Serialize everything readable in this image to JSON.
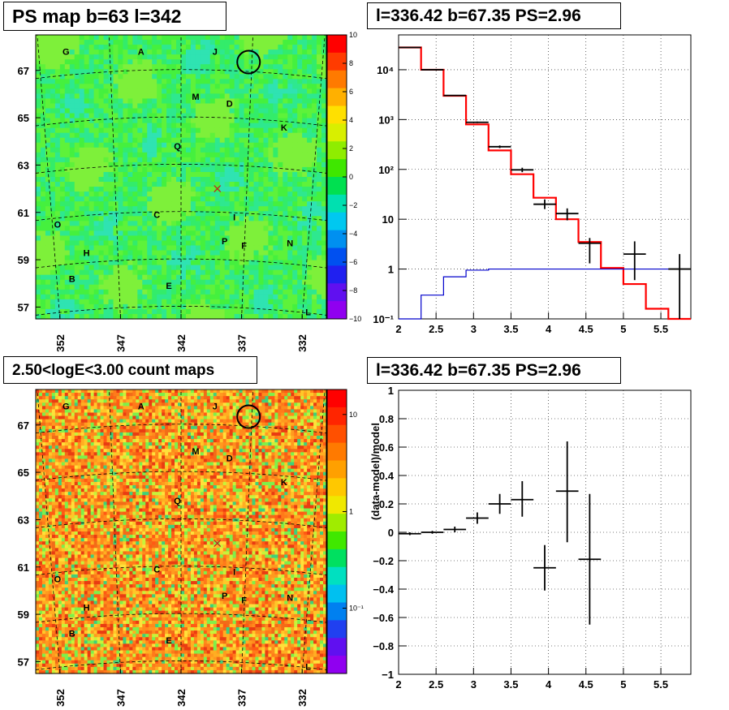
{
  "panels": {
    "map_top": {
      "title": "PS map b=63 l=342",
      "colorbar_ticks": [
        "10",
        "8",
        "6",
        "4",
        "2",
        "0",
        "−2",
        "−4",
        "−6",
        "−8",
        "−10"
      ]
    },
    "spectrum": {
      "title": "l=336.42 b=67.35 PS=2.96",
      "y_tick_labels": [
        "10⁻¹",
        "1",
        "10",
        "10²",
        "10³",
        "10⁴"
      ],
      "x_tick_labels": [
        "2",
        "2.5",
        "3",
        "3.5",
        "4",
        "4.5",
        "5",
        "5.5"
      ]
    },
    "map_bottom": {
      "title": "2.50<logE<3.00 count maps",
      "colorbar_ticks": [
        "10",
        "1",
        "10⁻¹"
      ]
    },
    "residual": {
      "title": "l=336.42 b=67.35 PS=2.96",
      "y_tick_labels": [
        "1",
        "0.8",
        "0.6",
        "0.4",
        "0.2",
        "0",
        "−0.2",
        "−0.4",
        "−0.6",
        "−0.8",
        "−1"
      ],
      "x_tick_labels": [
        "2",
        "2.5",
        "3",
        "3.5",
        "4",
        "4.5",
        "5",
        "5.5"
      ],
      "ylabel": "(data-model)/model"
    }
  },
  "maps": {
    "lat_tick_labels": [
      "67",
      "65",
      "63",
      "61",
      "59",
      "57"
    ],
    "lon_tick_labels": [
      "352",
      "347",
      "342",
      "337",
      "332"
    ],
    "sources": [
      {
        "label": "G",
        "lon": 351.5,
        "lat": 67.8
      },
      {
        "label": "A",
        "lon": 345.3,
        "lat": 67.8
      },
      {
        "label": "J",
        "lon": 339.2,
        "lat": 67.8
      },
      {
        "label": "M",
        "lon": 340.8,
        "lat": 65.9
      },
      {
        "label": "D",
        "lon": 338.0,
        "lat": 65.6
      },
      {
        "label": "K",
        "lon": 333.5,
        "lat": 64.6
      },
      {
        "label": "Q",
        "lon": 342.3,
        "lat": 63.8
      },
      {
        "label": "C",
        "lon": 344.0,
        "lat": 60.9
      },
      {
        "label": "I",
        "lon": 337.6,
        "lat": 60.8
      },
      {
        "label": "O",
        "lon": 352.2,
        "lat": 60.5
      },
      {
        "label": "H",
        "lon": 349.8,
        "lat": 59.3
      },
      {
        "label": "P",
        "lon": 338.4,
        "lat": 59.8
      },
      {
        "label": "F",
        "lon": 336.8,
        "lat": 59.6
      },
      {
        "label": "N",
        "lon": 333.0,
        "lat": 59.7
      },
      {
        "label": "B",
        "lon": 351.0,
        "lat": 58.2
      },
      {
        "label": "E",
        "lon": 343.0,
        "lat": 57.9
      },
      {
        "label": "L",
        "lon": 331.5,
        "lat": 56.8
      }
    ],
    "circle_marker": {
      "lon": 336.42,
      "lat": 67.35
    },
    "cross_marker": {
      "lon": 339.0,
      "lat": 62.0
    }
  },
  "chart_data": [
    {
      "type": "heatmap",
      "title": "PS map b=63 l=342",
      "xlabel": "",
      "ylabel": "",
      "xlim": [
        354.0,
        330.0
      ],
      "ylim": [
        56.5,
        68.5
      ],
      "zlim": [
        -10,
        10
      ],
      "colorbar": "rainbow"
    },
    {
      "type": "line",
      "title": "l=336.42 b=67.35 PS=2.96",
      "xlim": [
        2,
        5.9
      ],
      "ylim": [
        0.1,
        50000
      ],
      "ylog": true,
      "grid": true,
      "bin_edges": [
        2.0,
        2.3,
        2.6,
        2.9,
        3.2,
        3.5,
        3.8,
        4.1,
        4.4,
        4.7,
        5.0,
        5.3,
        5.6,
        5.9
      ],
      "series": [
        {
          "color": "#ff0000",
          "values": [
            28000,
            10000,
            3000,
            800,
            240,
            80,
            27,
            10,
            3.5,
            1.05,
            0.5,
            0.16,
            0.06
          ]
        },
        {
          "color": "#0000cc",
          "values": [
            0.07,
            0.3,
            0.7,
            0.95,
            1.0,
            1.0,
            1.0,
            1.0,
            1.0,
            1.0,
            1.0,
            1.0,
            1.0
          ]
        }
      ],
      "points": [
        {
          "x": 2.15,
          "y": 28000,
          "xerr": 0.15,
          "ylo": 27800,
          "yhi": 28200
        },
        {
          "x": 2.45,
          "y": 10000,
          "xerr": 0.15,
          "ylo": 9900,
          "yhi": 10100
        },
        {
          "x": 2.75,
          "y": 3050,
          "xerr": 0.15,
          "ylo": 2990,
          "yhi": 3110
        },
        {
          "x": 3.05,
          "y": 880,
          "xerr": 0.15,
          "ylo": 850,
          "yhi": 910
        },
        {
          "x": 3.35,
          "y": 285,
          "xerr": 0.15,
          "ylo": 268,
          "yhi": 302
        },
        {
          "x": 3.65,
          "y": 98,
          "xerr": 0.15,
          "ylo": 88,
          "yhi": 108
        },
        {
          "x": 3.95,
          "y": 20,
          "xerr": 0.15,
          "ylo": 16,
          "yhi": 25
        },
        {
          "x": 4.25,
          "y": 13,
          "xerr": 0.15,
          "ylo": 9.5,
          "yhi": 16.5
        },
        {
          "x": 4.55,
          "y": 3.3,
          "xerr": 0.15,
          "ylo": 1.3,
          "yhi": 4.2
        },
        {
          "x": 5.15,
          "y": 2.0,
          "xerr": 0.15,
          "ylo": 0.6,
          "yhi": 3.6
        },
        {
          "x": 5.75,
          "y": 1.0,
          "xerr": 0.15,
          "ylo": 0.1,
          "yhi": 2.0
        }
      ]
    },
    {
      "type": "heatmap",
      "title": "2.50<logE<3.00 count maps",
      "xlabel": "",
      "ylabel": "",
      "xlim": [
        354.0,
        330.0
      ],
      "ylim": [
        56.5,
        68.5
      ],
      "zlog": true,
      "zlim": [
        0.05,
        30
      ]
    },
    {
      "type": "scatter",
      "title": "l=336.42 b=67.35 PS=2.96",
      "xlabel": "",
      "ylabel": "(data-model)/model",
      "xlim": [
        2,
        5.9
      ],
      "ylim": [
        -1,
        1
      ],
      "grid": true,
      "points": [
        {
          "x": 2.15,
          "y": -0.01,
          "xerr": 0.15,
          "ylo": -0.02,
          "yhi": 0.0
        },
        {
          "x": 2.45,
          "y": 0.0,
          "xerr": 0.15,
          "ylo": -0.01,
          "yhi": 0.01
        },
        {
          "x": 2.75,
          "y": 0.02,
          "xerr": 0.15,
          "ylo": 0.0,
          "yhi": 0.04
        },
        {
          "x": 3.05,
          "y": 0.1,
          "xerr": 0.15,
          "ylo": 0.06,
          "yhi": 0.14
        },
        {
          "x": 3.35,
          "y": 0.2,
          "xerr": 0.15,
          "ylo": 0.13,
          "yhi": 0.27
        },
        {
          "x": 3.65,
          "y": 0.23,
          "xerr": 0.15,
          "ylo": 0.11,
          "yhi": 0.36
        },
        {
          "x": 3.95,
          "y": -0.25,
          "xerr": 0.15,
          "ylo": -0.41,
          "yhi": -0.09
        },
        {
          "x": 4.25,
          "y": 0.29,
          "xerr": 0.15,
          "ylo": -0.07,
          "yhi": 0.64
        },
        {
          "x": 4.55,
          "y": -0.19,
          "xerr": 0.15,
          "ylo": -0.65,
          "yhi": 0.27
        }
      ]
    }
  ]
}
